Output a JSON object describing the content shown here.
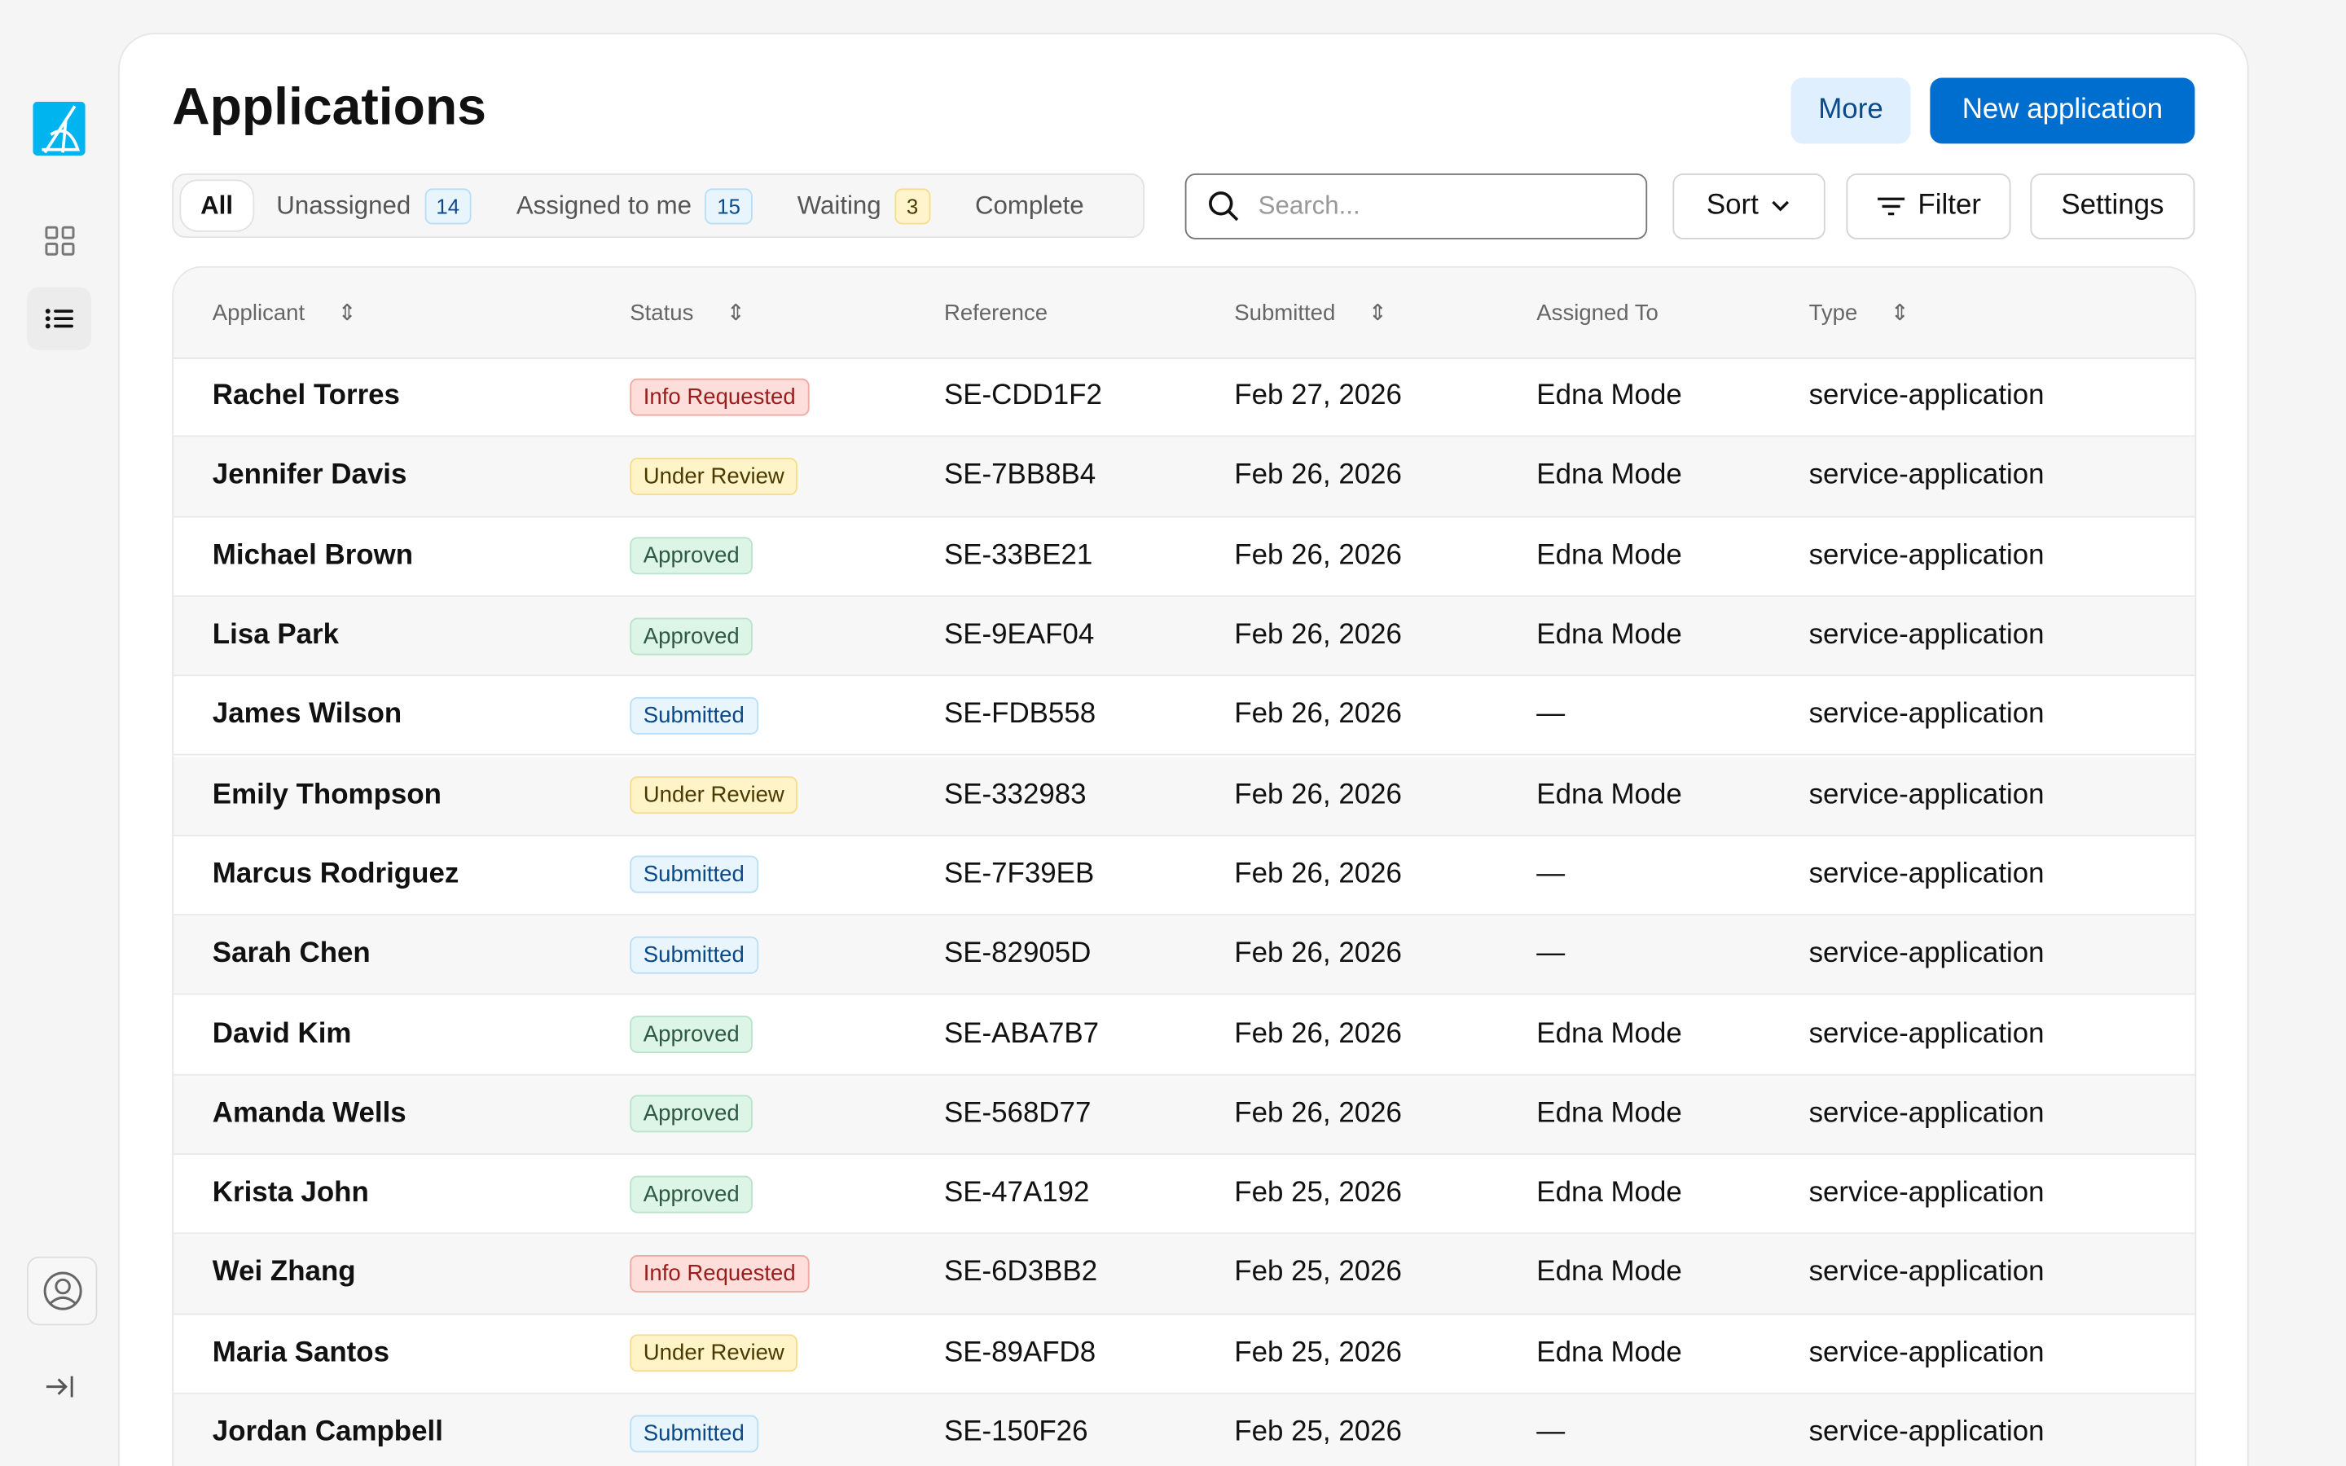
{
  "page": {
    "title": "Applications"
  },
  "header": {
    "more_label": "More",
    "new_label": "New application"
  },
  "tabs": [
    {
      "label": "All",
      "active": true
    },
    {
      "label": "Unassigned",
      "count": "14"
    },
    {
      "label": "Assigned to me",
      "count": "15"
    },
    {
      "label": "Waiting",
      "count": "3"
    },
    {
      "label": "Complete"
    }
  ],
  "toolbar": {
    "search_placeholder": "Search...",
    "sort_label": "Sort",
    "filter_label": "Filter",
    "settings_label": "Settings"
  },
  "table": {
    "columns": [
      "Applicant",
      "Status",
      "Reference",
      "Submitted",
      "Assigned To",
      "Type"
    ],
    "rows": [
      [
        "Rachel Torres",
        "Info Requested",
        "SE-CDD1F2",
        "Feb 27, 2026",
        "Edna Mode",
        "service-application"
      ],
      [
        "Jennifer Davis",
        "Under Review",
        "SE-7BB8B4",
        "Feb 26, 2026",
        "Edna Mode",
        "service-application"
      ],
      [
        "Michael Brown",
        "Approved",
        "SE-33BE21",
        "Feb 26, 2026",
        "Edna Mode",
        "service-application"
      ],
      [
        "Lisa Park",
        "Approved",
        "SE-9EAF04",
        "Feb 26, 2026",
        "Edna Mode",
        "service-application"
      ],
      [
        "James Wilson",
        "Submitted",
        "SE-FDB558",
        "Feb 26, 2026",
        "—",
        "service-application"
      ],
      [
        "Emily Thompson",
        "Under Review",
        "SE-332983",
        "Feb 26, 2026",
        "Edna Mode",
        "service-application"
      ],
      [
        "Marcus Rodriguez",
        "Submitted",
        "SE-7F39EB",
        "Feb 26, 2026",
        "—",
        "service-application"
      ],
      [
        "Sarah Chen",
        "Submitted",
        "SE-82905D",
        "Feb 26, 2026",
        "—",
        "service-application"
      ],
      [
        "David Kim",
        "Approved",
        "SE-ABA7B7",
        "Feb 26, 2026",
        "Edna Mode",
        "service-application"
      ],
      [
        "Amanda Wells",
        "Approved",
        "SE-568D77",
        "Feb 26, 2026",
        "Edna Mode",
        "service-application"
      ],
      [
        "Krista John",
        "Approved",
        "SE-47A192",
        "Feb 25, 2026",
        "Edna Mode",
        "service-application"
      ],
      [
        "Wei Zhang",
        "Info Requested",
        "SE-6D3BB2",
        "Feb 25, 2026",
        "Edna Mode",
        "service-application"
      ],
      [
        "Maria Santos",
        "Under Review",
        "SE-89AFD8",
        "Feb 25, 2026",
        "Edna Mode",
        "service-application"
      ],
      [
        "Jordan Campbell",
        "Submitted",
        "SE-150F26",
        "Feb 25, 2026",
        "—",
        "service-application"
      ]
    ]
  },
  "status_colors": {
    "Info Requested": {
      "bg": "#fddedb",
      "border": "#f0a9a3",
      "text": "#9b1c1c"
    },
    "Under Review": {
      "bg": "#fff3c8",
      "border": "#f6dc8c",
      "text": "#4a3a00"
    },
    "Approved": {
      "bg": "#dcf5e7",
      "border": "#b9e3cb",
      "text": "#2f5a42"
    },
    "Submitted": {
      "bg": "#e8f5fd",
      "border": "#b9def5",
      "text": "#0b4a8a"
    }
  },
  "colors": {
    "accent": "#006ecf",
    "logo": "#00b4ef"
  }
}
